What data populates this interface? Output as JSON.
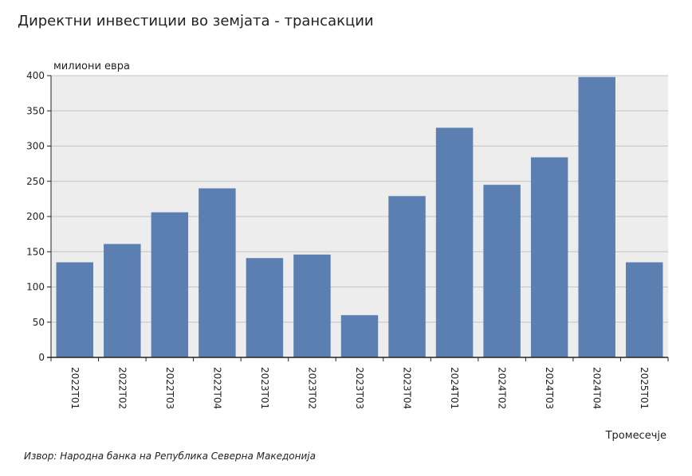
{
  "title": "Директни инвестиции во земјата - трансакции",
  "source": "Извор: Народна банка на Република Северна Македонија",
  "colors": {
    "bar": "#5a7fb0",
    "plot_bg": "#ededed",
    "grid": "#c4c4c4",
    "axis": "#222222"
  },
  "chart_data": {
    "type": "bar",
    "title": "Директни инвестиции во земјата - трансакции",
    "xlabel": "Тромесечје",
    "ylabel": "милиони евра",
    "ylim": [
      0,
      400
    ],
    "yticks": [
      0,
      50,
      100,
      150,
      200,
      250,
      300,
      350,
      400
    ],
    "grid": true,
    "categories": [
      "2022Т01",
      "2022Т02",
      "2022Т03",
      "2022Т04",
      "2023Т01",
      "2023Т02",
      "2023Т03",
      "2023Т04",
      "2024Т01",
      "2024Т02",
      "2024Т03",
      "2024Т04",
      "2025Т01"
    ],
    "values": [
      135,
      161,
      206,
      240,
      141,
      146,
      60,
      229,
      326,
      245,
      284,
      398,
      135
    ]
  }
}
